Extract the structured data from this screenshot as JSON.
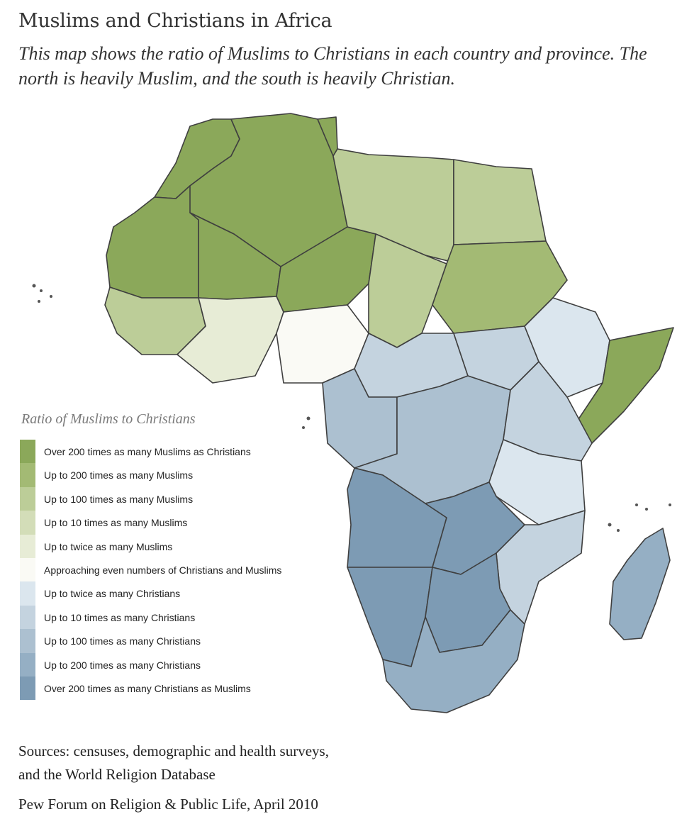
{
  "title": "Muslims and Christians in Africa",
  "subtitle": "This map shows the ratio of Muslims to Christians in each country and province. The north is heavily Muslim, and the south is heavily Christian.",
  "legend": {
    "title": "Ratio of Muslims to Christians",
    "items": [
      {
        "label": "Over 200 times as many Muslims as Christians",
        "color": "#8ba85a"
      },
      {
        "label": "Up to 200 times as many Muslims",
        "color": "#a3ba74"
      },
      {
        "label": "Up to 100 times as many Muslims",
        "color": "#bccd98"
      },
      {
        "label": "Up to 10 times as many Muslims",
        "color": "#d3ddb8"
      },
      {
        "label": "Up to twice as many Muslims",
        "color": "#e7ecd6"
      },
      {
        "label": "Approaching even numbers of Christians and Muslims",
        "color": "#fafaf5"
      },
      {
        "label": "Up to twice as many Christians",
        "color": "#dbe6ee"
      },
      {
        "label": "Up to 10 times as many Christians",
        "color": "#c4d3df"
      },
      {
        "label": "Up to 100 times as many Christians",
        "color": "#acc0d0"
      },
      {
        "label": "Up to 200 times as many Christians",
        "color": "#95afc4"
      },
      {
        "label": "Over 200 times as many Christians as Muslims",
        "color": "#7d9bb4"
      }
    ]
  },
  "sources": {
    "line1": "Sources: censuses, demographic and health surveys,",
    "line2": "and the World Religion Database"
  },
  "credit": "Pew Forum on Religion & Public Life, April 2010"
}
